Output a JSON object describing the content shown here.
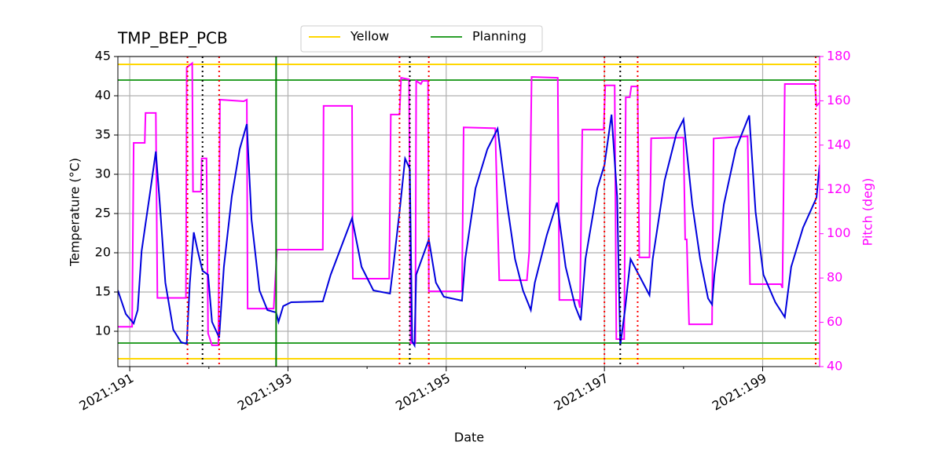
{
  "chart_data": {
    "type": "line",
    "title": "TMP_BEP_PCB",
    "xlabel": "Date",
    "ylabel": "Temperature (°C)",
    "y2label": "Pitch (deg)",
    "xlim": [
      190.85,
      199.72
    ],
    "ylim": [
      5.5,
      45
    ],
    "y2lim": [
      40,
      180
    ],
    "xticks": [
      {
        "value": 191,
        "label": "2021:191"
      },
      {
        "value": 193,
        "label": "2021:193"
      },
      {
        "value": 195,
        "label": "2021:195"
      },
      {
        "value": 197,
        "label": "2021:197"
      },
      {
        "value": 199,
        "label": "2021:199"
      }
    ],
    "xminorticks": [
      192,
      194,
      196,
      198
    ],
    "yticks": [
      10,
      15,
      20,
      25,
      30,
      35,
      40,
      45
    ],
    "y2ticks": [
      40,
      60,
      80,
      100,
      120,
      140,
      160,
      180
    ],
    "y2color": "#ff00ff",
    "grid": true,
    "legend": "upper center",
    "hlines": [
      {
        "name": "Yellow",
        "color": "#ffd700",
        "values": [
          44,
          6.5
        ]
      },
      {
        "name": "Planning",
        "color": "#2ca02c",
        "values": [
          42,
          8.5
        ]
      }
    ],
    "vlines": [
      {
        "x": 192.85,
        "color": "#008000",
        "style": "solid"
      },
      {
        "x": 191.73,
        "color": "#ff0000",
        "style": "dotted"
      },
      {
        "x": 192.13,
        "color": "#ff0000",
        "style": "dotted"
      },
      {
        "x": 194.41,
        "color": "#ff0000",
        "style": "dotted"
      },
      {
        "x": 194.78,
        "color": "#ff0000",
        "style": "dotted"
      },
      {
        "x": 197.0,
        "color": "#ff0000",
        "style": "dotted"
      },
      {
        "x": 197.42,
        "color": "#ff0000",
        "style": "dotted"
      },
      {
        "x": 199.67,
        "color": "#ff0000",
        "style": "dotted"
      },
      {
        "x": 191.92,
        "color": "#000000",
        "style": "dotted"
      },
      {
        "x": 194.54,
        "color": "#000000",
        "style": "dotted"
      },
      {
        "x": 197.2,
        "color": "#000000",
        "style": "dotted"
      }
    ],
    "series": [
      {
        "color": "#ff00ff",
        "axis": "y2",
        "x": [
          190.85,
          191.03,
          191.05,
          191.19,
          191.2,
          191.33,
          191.35,
          191.71,
          191.72,
          191.79,
          191.8,
          191.9,
          191.91,
          191.97,
          191.99,
          192.04,
          192.12,
          192.14,
          192.44,
          192.48,
          192.49,
          192.82,
          192.86,
          193.44,
          193.45,
          193.81,
          193.82,
          194.28,
          194.3,
          194.41,
          194.43,
          194.53,
          194.55,
          194.61,
          194.62,
          194.68,
          194.7,
          194.77,
          194.78,
          195.2,
          195.22,
          195.62,
          195.67,
          196.02,
          196.05,
          196.08,
          196.41,
          196.43,
          196.67,
          196.69,
          196.72,
          196.99,
          197.01,
          197.13,
          197.15,
          197.25,
          197.27,
          197.32,
          197.34,
          197.42,
          197.44,
          197.57,
          197.59,
          198.0,
          198.02,
          198.04,
          198.07,
          198.36,
          198.38,
          198.81,
          198.84,
          199.23,
          199.25,
          199.28,
          199.66,
          199.68,
          199.73
        ],
        "values": [
          58,
          58,
          141,
          141,
          154.5,
          154.5,
          71,
          71,
          175,
          177,
          119,
          119,
          134,
          134,
          55,
          49.6,
          49.6,
          160.5,
          159.8,
          160.5,
          66.2,
          66.2,
          92.8,
          92.8,
          157.7,
          157.7,
          79.7,
          79.7,
          153.8,
          153.8,
          170.4,
          169.7,
          50.6,
          50.6,
          169,
          167.6,
          169,
          169,
          74,
          74,
          148,
          147.6,
          79,
          79,
          92,
          170.8,
          170.4,
          70.1,
          70.1,
          66.6,
          147,
          147,
          167,
          167,
          52.4,
          52.4,
          161.6,
          161.6,
          166.5,
          166.5,
          89.3,
          89.3,
          143.1,
          143.4,
          97.4,
          97.4,
          59.1,
          59.1,
          143,
          144,
          77.2,
          77.2,
          75.5,
          167.6,
          167.6,
          157.7,
          159.5
        ]
      },
      {
        "color": "#0000dd",
        "axis": "y",
        "x": [
          190.85,
          190.95,
          191.05,
          191.1,
          191.15,
          191.2,
          191.25,
          191.33,
          191.38,
          191.45,
          191.55,
          191.65,
          191.72,
          191.76,
          191.81,
          191.86,
          191.92,
          191.99,
          192.04,
          192.13,
          192.19,
          192.29,
          192.39,
          192.48,
          192.54,
          192.64,
          192.74,
          192.85,
          192.88,
          192.94,
          193.04,
          193.44,
          193.54,
          193.69,
          193.81,
          193.93,
          194.08,
          194.29,
          194.33,
          194.41,
          194.48,
          194.54,
          194.57,
          194.6,
          194.62,
          194.78,
          194.87,
          194.97,
          195.2,
          195.24,
          195.37,
          195.52,
          195.65,
          195.77,
          195.87,
          195.97,
          196.07,
          196.12,
          196.27,
          196.4,
          196.51,
          196.63,
          196.7,
          196.76,
          196.91,
          197.0,
          197.09,
          197.16,
          197.2,
          197.26,
          197.33,
          197.46,
          197.57,
          197.61,
          197.76,
          197.91,
          198.0,
          198.11,
          198.21,
          198.31,
          198.36,
          198.39,
          198.51,
          198.66,
          198.83,
          198.91,
          199.01,
          199.16,
          199.28,
          199.36,
          199.51,
          199.68,
          199.72
        ],
        "values": [
          15.2,
          12.2,
          11.0,
          12.7,
          20.2,
          23.7,
          27.2,
          32.9,
          26.2,
          16.2,
          10.2,
          8.6,
          8.4,
          16.2,
          22.6,
          20.2,
          17.7,
          17.2,
          11.2,
          9.2,
          18.2,
          27.2,
          33.2,
          36.4,
          24.2,
          15.2,
          12.7,
          12.4,
          11.2,
          13.2,
          13.7,
          13.8,
          17.2,
          21.2,
          24.4,
          18.2,
          15.2,
          14.8,
          18.2,
          25.2,
          32.0,
          30.7,
          8.7,
          8.2,
          17.2,
          21.7,
          16.2,
          14.4,
          13.9,
          19.2,
          28.2,
          33.2,
          35.8,
          26.2,
          19.2,
          15.2,
          12.7,
          16.2,
          22.2,
          26.4,
          18.2,
          13.2,
          11.4,
          19.2,
          28.2,
          31.2,
          37.6,
          27.2,
          8.2,
          12.7,
          19.2,
          16.7,
          14.6,
          19.2,
          29.2,
          35.2,
          37.0,
          26.2,
          19.2,
          14.2,
          13.4,
          17.2,
          26.2,
          33.2,
          37.5,
          25.2,
          17.2,
          13.7,
          11.8,
          18.2,
          23.2,
          27.0,
          31.2
        ]
      }
    ]
  }
}
